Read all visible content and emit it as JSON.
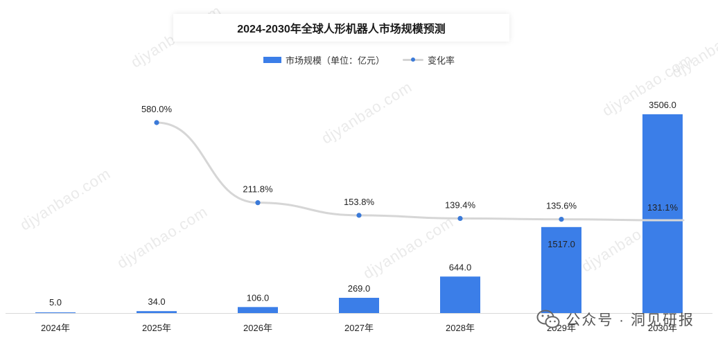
{
  "chart_data": {
    "type": "bar",
    "title": "2024-2030年全球人形机器人市场规模预测",
    "categories": [
      "2024年",
      "2025年",
      "2026年",
      "2027年",
      "2028年",
      "2029年",
      "2030年"
    ],
    "series": [
      {
        "name": "市场规模（单位：亿元）",
        "type": "bar",
        "values": [
          5.0,
          34.0,
          106.0,
          269.0,
          644.0,
          1517.0,
          3506.0
        ],
        "labels": [
          "5.0",
          "34.0",
          "106.0",
          "269.0",
          "644.0",
          "1517.0",
          "3506.0"
        ]
      },
      {
        "name": "变化率",
        "type": "line",
        "values": [
          null,
          580.0,
          211.8,
          153.8,
          139.4,
          135.6,
          131.1
        ],
        "labels": [
          "",
          "580.0%",
          "211.8%",
          "153.8%",
          "139.4%",
          "135.6%",
          "131.1%"
        ]
      }
    ],
    "ylim_bar": [
      0,
      3506
    ],
    "ylim_line": [
      0,
      580
    ],
    "grid": false,
    "legend_position": "top-center"
  },
  "colors": {
    "bar": "#3b7ee8",
    "line": "#d6d6d6",
    "marker": "#3b7ad8"
  },
  "watermark": "djyanbao.com",
  "footer": {
    "icon": "wechat-icon",
    "text": "公众号 · 洞见研报"
  }
}
